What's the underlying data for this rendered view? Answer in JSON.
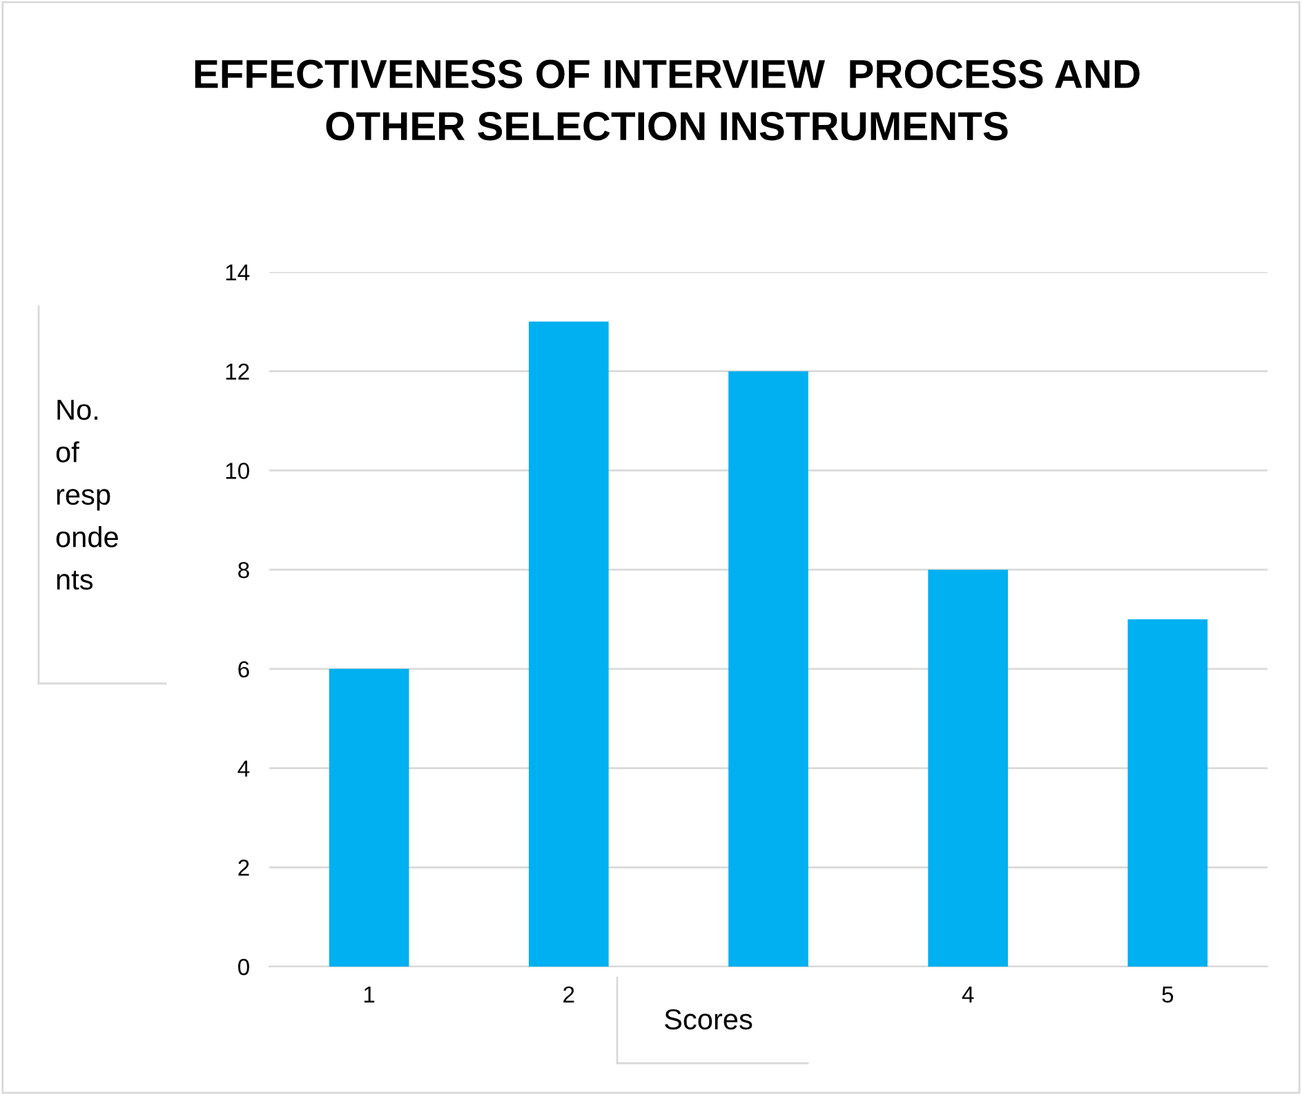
{
  "chart_data": {
    "type": "bar",
    "title": "EFFECTIVENESS OF INTERVIEW  PROCESS AND\nOTHER SELECTION INSTRUMENTS",
    "xlabel": "Scores",
    "ylabel": "No.\nof\nresp\nonde\nnts",
    "categories": [
      "1",
      "2",
      null,
      "4",
      "5"
    ],
    "values": [
      6,
      13,
      12,
      8,
      7
    ],
    "color": "#00b0f0",
    "ylim": [
      0,
      14
    ],
    "yticks": [
      0,
      2,
      4,
      6,
      8,
      10,
      12,
      14
    ],
    "grid": "y",
    "legend": false
  }
}
